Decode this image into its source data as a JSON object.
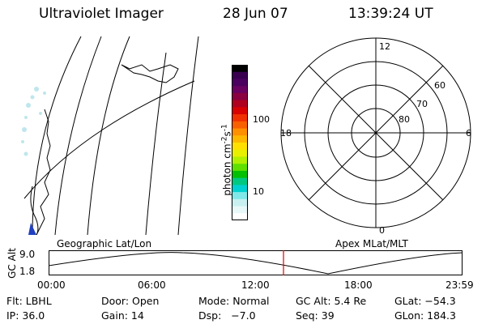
{
  "header": {
    "instrument": "Ultraviolet Imager",
    "date": "28 Jun 07",
    "time": "13:39:24 UT"
  },
  "colorbar": {
    "label_html": "photon cm",
    "unit_part1": "photon cm",
    "exp1": "-2",
    "unit_part2": "s",
    "exp2": "-1",
    "ticks": [
      "100",
      "10"
    ],
    "colors": [
      "#000000",
      "#3a0050",
      "#4b0060",
      "#6a0060",
      "#8a0040",
      "#b00020",
      "#d80000",
      "#f03000",
      "#f86000",
      "#ff9000",
      "#ffb800",
      "#ffe000",
      "#e8f000",
      "#b0f000",
      "#60e000",
      "#00c000",
      "#00c880",
      "#00d0d0",
      "#80e8e8",
      "#c8f0f0",
      "#e8f8f8",
      "#ffffff"
    ]
  },
  "polar": {
    "mlt_labels": {
      "top": "12",
      "left": "18",
      "right": "6",
      "bottom": "0"
    },
    "lat_labels": [
      "60",
      "70",
      "80"
    ]
  },
  "altitude_strip": {
    "axis_title": "GC Alt",
    "y_ticks": [
      "9.0",
      "1.8"
    ],
    "left_caption": "Geographic Lat/Lon",
    "right_caption": "Apex MLat/MLT",
    "x_ticks": [
      "00:00",
      "06:00",
      "12:00",
      "18:00",
      "23:59"
    ]
  },
  "status": {
    "row1": {
      "filter": "Flt: LBHL",
      "door": "Door: Open",
      "mode": "Mode: Normal",
      "gc_alt": "GC Alt: 5.4 Re",
      "glat": "GLat: −54.3"
    },
    "row2": {
      "ip": "IP: 36.0",
      "gain": "Gain: 14",
      "dsp": "Dsp:   −7.0",
      "seq": "Seq: 39",
      "glon": "GLon: 184.3"
    }
  }
}
